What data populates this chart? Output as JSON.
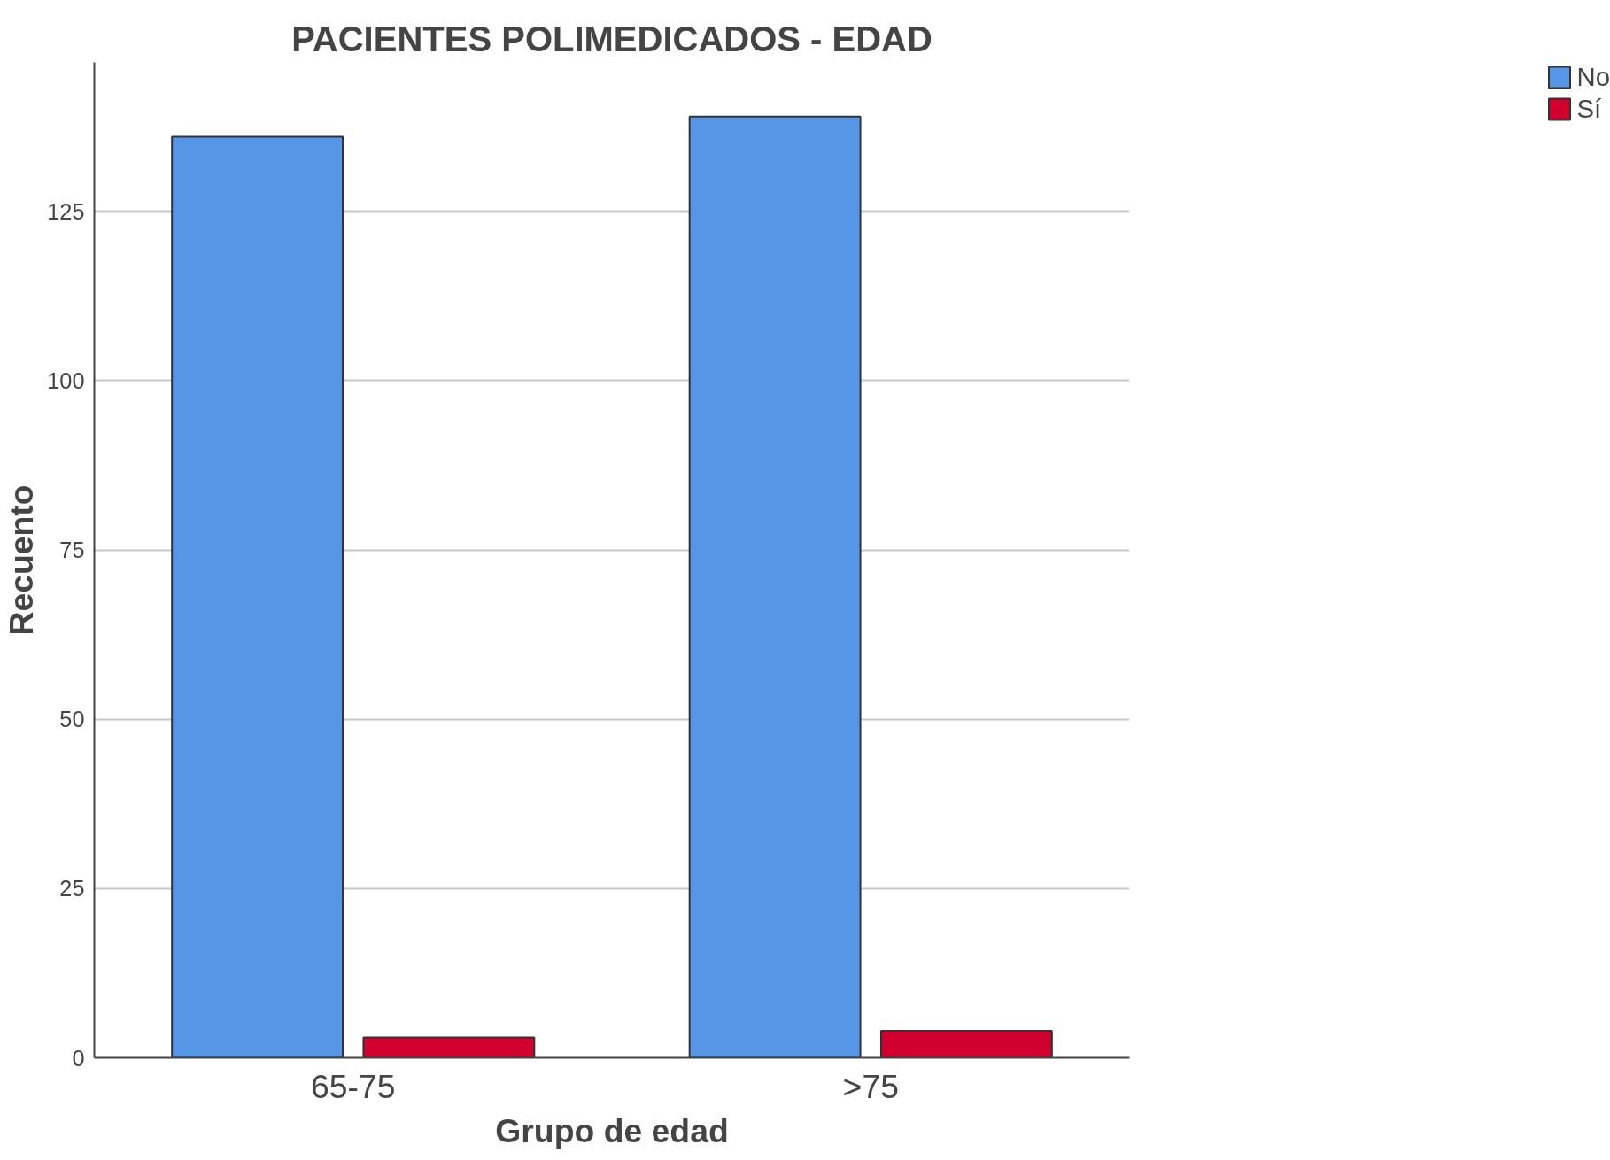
{
  "chart_data": {
    "type": "bar",
    "title": "PACIENTES POLIMEDICADOS - EDAD",
    "xlabel": "Grupo de edad",
    "ylabel": "Recuento",
    "categories": [
      "65-75",
      ">75"
    ],
    "series": [
      {
        "name": "No",
        "color": "#5596e6",
        "values": [
          136,
          139
        ]
      },
      {
        "name": "Sí",
        "color": "#d1002e",
        "values": [
          3,
          4
        ]
      }
    ],
    "ylim": [
      0,
      147
    ],
    "yticks": [
      0,
      25,
      50,
      75,
      100,
      125
    ],
    "grid": "y",
    "legend": "top right"
  }
}
